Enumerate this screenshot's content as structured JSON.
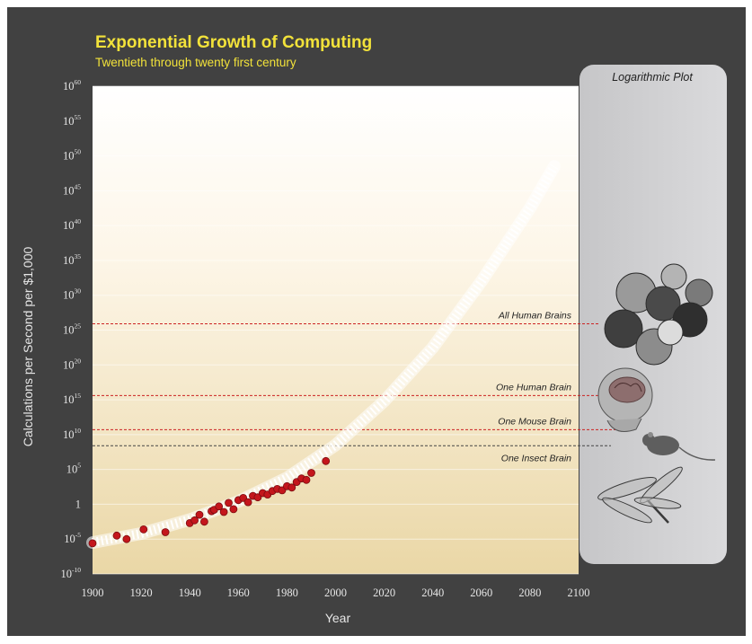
{
  "chart_data": {
    "type": "scatter",
    "title": "Exponential Growth of Computing",
    "subtitle": "Twentieth through twenty first century",
    "xlabel": "Year",
    "ylabel": "Calculations per Second per $1,000",
    "x_ticks": [
      "1900",
      "1920",
      "1940",
      "1960",
      "1980",
      "2000",
      "2020",
      "2040",
      "2060",
      "2080",
      "2100"
    ],
    "y_ticks": [
      {
        "base": "10",
        "exp": "60"
      },
      {
        "base": "10",
        "exp": "55"
      },
      {
        "base": "10",
        "exp": "50"
      },
      {
        "base": "10",
        "exp": "45"
      },
      {
        "base": "10",
        "exp": "40"
      },
      {
        "base": "10",
        "exp": "35"
      },
      {
        "base": "10",
        "exp": "30"
      },
      {
        "base": "10",
        "exp": "25"
      },
      {
        "base": "10",
        "exp": "20"
      },
      {
        "base": "10",
        "exp": "15"
      },
      {
        "base": "10",
        "exp": "10"
      },
      {
        "base": "10",
        "exp": "5"
      },
      {
        "base": "1",
        "exp": ""
      },
      {
        "base": "10",
        "exp": "-5"
      },
      {
        "base": "10",
        "exp": "-10"
      }
    ],
    "xlim": [
      1900,
      2100
    ],
    "ylim_log10": [
      -10,
      60
    ],
    "log_scale_y": true,
    "grid": true,
    "panel_title": "Logarithmic Plot",
    "series": [
      {
        "kind": "points",
        "x": [
          1900,
          1910,
          1914,
          1921,
          1930,
          1940,
          1942,
          1944,
          1946,
          1949,
          1950,
          1952,
          1954,
          1956,
          1958,
          1960,
          1962,
          1964,
          1966,
          1968,
          1970,
          1972,
          1974,
          1976,
          1978,
          1980,
          1982,
          1984,
          1986,
          1988,
          1990,
          1996
        ],
        "y": [
          -5.6,
          -4.5,
          -5.0,
          -3.6,
          -4.0,
          -2.7,
          -2.3,
          -1.5,
          -2.5,
          -1.0,
          -0.8,
          -0.3,
          -1.1,
          0.2,
          -0.7,
          0.6,
          0.9,
          0.3,
          1.2,
          1.0,
          1.6,
          1.4,
          1.9,
          2.2,
          2.0,
          2.6,
          2.4,
          3.2,
          3.7,
          3.5,
          4.5,
          6.2
        ]
      },
      {
        "kind": "trend",
        "x": [
          1900,
          1920,
          1940,
          1960,
          1980,
          2000,
          2020,
          2040,
          2060,
          2080,
          2090
        ],
        "y": [
          -5.5,
          -4.2,
          -2.2,
          0.4,
          3.8,
          8.5,
          14.8,
          22.5,
          32.0,
          42.5,
          48.5
        ]
      }
    ],
    "reference_lines": [
      {
        "label": "All Human Brains",
        "y": 25.9
      },
      {
        "label": "One Human Brain",
        "y": 15.6
      },
      {
        "label": "One Mouse Brain",
        "y": 10.7
      },
      {
        "label": "One Insect Brain",
        "y": 8.4
      }
    ],
    "colors": {
      "points": "#c4161c",
      "trend": "#ffffff",
      "reference_line": "#cc2222",
      "title": "#f2e23a",
      "frame": "#414141",
      "panel": "#d0d0d2"
    }
  },
  "icons": {
    "brains_illustrations": [
      "crowd-of-heads-icon",
      "human-head-brain-icon",
      "mouse-icon",
      "dragonfly-icon"
    ]
  }
}
